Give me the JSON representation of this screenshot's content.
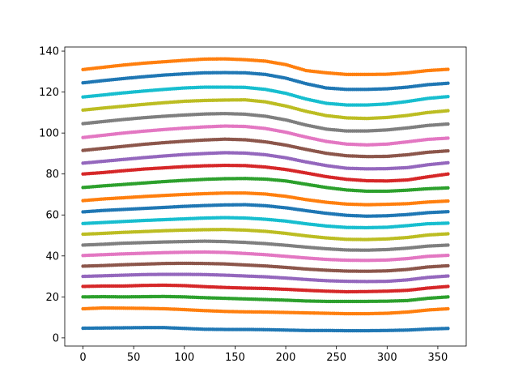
{
  "chart_data": {
    "type": "line",
    "title": "",
    "xlabel": "",
    "ylabel": "",
    "xlim": [
      -18,
      378
    ],
    "ylim": [
      -4,
      142
    ],
    "grid": false,
    "legend": "none",
    "marker": "circle",
    "xticks": [
      0,
      50,
      100,
      150,
      200,
      250,
      300,
      350
    ],
    "yticks": [
      0,
      20,
      40,
      60,
      80,
      100,
      120,
      140
    ],
    "x": [
      0,
      20,
      40,
      60,
      80,
      100,
      120,
      140,
      160,
      180,
      200,
      220,
      240,
      260,
      280,
      300,
      320,
      340,
      360
    ],
    "series": [
      {
        "color": "#1f77b4",
        "values": [
          4.7,
          4.8,
          4.9,
          5.0,
          5.0,
          4.6,
          4.2,
          4.1,
          4.1,
          4.0,
          3.8,
          3.6,
          3.6,
          3.5,
          3.5,
          3.6,
          3.8,
          4.3,
          4.6
        ]
      },
      {
        "color": "#ff7f0e",
        "values": [
          14.2,
          14.6,
          14.5,
          14.4,
          14.2,
          13.8,
          13.3,
          12.9,
          12.7,
          12.6,
          12.4,
          12.2,
          12.0,
          11.8,
          11.8,
          12.0,
          12.6,
          13.6,
          14.2
        ]
      },
      {
        "color": "#2ca02c",
        "values": [
          20.0,
          20.1,
          20.0,
          20.1,
          20.2,
          20.0,
          19.6,
          19.3,
          19.0,
          18.7,
          18.4,
          18.0,
          17.8,
          17.8,
          17.8,
          17.9,
          18.2,
          19.3,
          20.0
        ]
      },
      {
        "color": "#d62728",
        "values": [
          25.1,
          25.3,
          25.3,
          25.6,
          25.7,
          25.5,
          25.0,
          24.6,
          24.3,
          24.1,
          23.7,
          23.2,
          22.8,
          22.5,
          22.6,
          22.8,
          23.2,
          24.3,
          25.1
        ]
      },
      {
        "color": "#9467bd",
        "values": [
          30.0,
          30.3,
          30.6,
          30.9,
          31.0,
          31.0,
          30.9,
          30.6,
          30.2,
          29.8,
          29.2,
          28.5,
          27.9,
          27.6,
          27.5,
          27.6,
          28.3,
          29.5,
          30.2
        ]
      },
      {
        "color": "#8c564b",
        "values": [
          35.0,
          35.3,
          35.7,
          36.0,
          36.3,
          36.4,
          36.3,
          36.1,
          35.6,
          35.1,
          34.4,
          33.6,
          33.0,
          32.6,
          32.5,
          32.7,
          33.4,
          34.6,
          35.2
        ]
      },
      {
        "color": "#e377c2",
        "values": [
          40.2,
          40.6,
          41.0,
          41.3,
          41.6,
          41.8,
          41.9,
          41.7,
          41.2,
          40.6,
          39.8,
          39.0,
          38.3,
          37.9,
          37.8,
          38.0,
          38.7,
          39.8,
          40.3
        ]
      },
      {
        "color": "#7f7f7f",
        "values": [
          45.3,
          45.7,
          46.2,
          46.5,
          46.8,
          47.0,
          47.2,
          47.0,
          46.6,
          46.0,
          45.2,
          44.3,
          43.5,
          42.9,
          42.8,
          43.1,
          43.8,
          44.8,
          45.3
        ]
      },
      {
        "color": "#bcbd22",
        "values": [
          50.6,
          51.0,
          51.5,
          51.9,
          52.3,
          52.6,
          52.8,
          52.9,
          52.6,
          52.0,
          51.0,
          49.8,
          48.8,
          48.1,
          48.0,
          48.3,
          49.0,
          50.2,
          50.8
        ]
      },
      {
        "color": "#17becf",
        "values": [
          55.8,
          56.3,
          56.8,
          57.3,
          57.7,
          58.1,
          58.5,
          58.7,
          58.5,
          57.9,
          57.0,
          55.7,
          54.6,
          53.9,
          53.8,
          54.0,
          54.8,
          55.7,
          56.0
        ]
      },
      {
        "color": "#1f77b4",
        "values": [
          61.5,
          62.2,
          62.7,
          63.2,
          63.7,
          64.2,
          64.6,
          64.9,
          65.0,
          64.5,
          63.5,
          62.1,
          60.8,
          59.8,
          59.4,
          59.6,
          60.2,
          61.1,
          61.6
        ]
      },
      {
        "color": "#ff7f0e",
        "values": [
          67.0,
          67.8,
          68.4,
          69.0,
          69.5,
          70.0,
          70.4,
          70.7,
          70.7,
          70.2,
          69.1,
          67.5,
          66.2,
          65.3,
          65.0,
          65.2,
          65.5,
          66.3,
          66.8
        ]
      },
      {
        "color": "#2ca02c",
        "values": [
          73.4,
          74.2,
          74.9,
          75.6,
          76.3,
          76.9,
          77.4,
          77.7,
          77.8,
          77.5,
          76.6,
          75.0,
          73.4,
          72.2,
          71.6,
          71.6,
          72.1,
          72.8,
          73.2
        ]
      },
      {
        "color": "#d62728",
        "values": [
          80.0,
          80.7,
          81.6,
          82.4,
          83.0,
          83.6,
          84.0,
          84.2,
          84.1,
          83.4,
          82.2,
          80.5,
          78.7,
          77.4,
          76.7,
          76.6,
          77.1,
          78.6,
          80.0
        ]
      },
      {
        "color": "#9467bd",
        "values": [
          85.3,
          86.2,
          87.1,
          88.0,
          88.8,
          89.5,
          90.0,
          90.4,
          90.2,
          89.4,
          87.9,
          85.9,
          84.1,
          82.8,
          82.5,
          82.6,
          83.1,
          84.5,
          85.5
        ]
      },
      {
        "color": "#8c564b",
        "values": [
          91.5,
          92.5,
          93.5,
          94.5,
          95.3,
          96.0,
          96.6,
          97.0,
          96.7,
          95.7,
          94.1,
          92.0,
          90.1,
          88.9,
          88.5,
          88.6,
          89.4,
          90.6,
          91.3
        ]
      },
      {
        "color": "#e377c2",
        "values": [
          97.8,
          98.9,
          100.0,
          100.9,
          101.7,
          102.4,
          103.0,
          103.4,
          103.2,
          102.2,
          100.4,
          98.0,
          95.9,
          94.6,
          94.2,
          94.6,
          95.7,
          96.9,
          97.5
        ]
      },
      {
        "color": "#7f7f7f",
        "values": [
          104.6,
          105.6,
          106.6,
          107.5,
          108.2,
          108.8,
          109.3,
          109.5,
          109.2,
          108.2,
          106.4,
          103.9,
          101.9,
          101.0,
          101.0,
          101.5,
          102.5,
          103.7,
          104.4
        ]
      },
      {
        "color": "#bcbd22",
        "values": [
          111.2,
          112.2,
          113.1,
          114.0,
          114.8,
          115.5,
          115.9,
          116.1,
          116.2,
          115.2,
          113.2,
          110.6,
          108.5,
          107.4,
          107.1,
          107.6,
          108.6,
          110.0,
          110.9
        ]
      },
      {
        "color": "#17becf",
        "values": [
          117.6,
          118.6,
          119.6,
          120.5,
          121.3,
          122.0,
          122.4,
          122.4,
          122.3,
          121.3,
          119.4,
          116.6,
          114.5,
          113.7,
          113.7,
          114.2,
          115.4,
          116.9,
          117.8
        ]
      },
      {
        "color": "#1f77b4",
        "values": [
          124.5,
          125.6,
          126.6,
          127.5,
          128.3,
          128.9,
          129.4,
          129.5,
          129.4,
          128.6,
          126.8,
          124.1,
          122.0,
          121.3,
          121.3,
          121.6,
          122.4,
          123.6,
          124.3
        ]
      },
      {
        "color": "#ff7f0e",
        "values": [
          131.0,
          132.1,
          133.2,
          134.1,
          134.8,
          135.5,
          136.1,
          136.2,
          135.8,
          135.1,
          133.4,
          130.5,
          129.4,
          128.6,
          128.6,
          128.7,
          129.4,
          130.5,
          131.1
        ]
      }
    ]
  }
}
